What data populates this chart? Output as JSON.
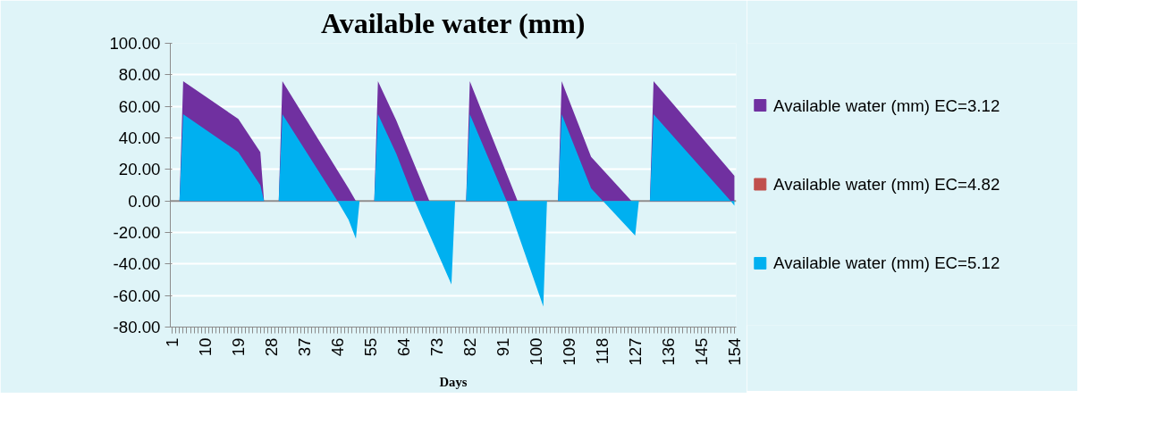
{
  "chart_data": {
    "type": "area",
    "title": "Available water (mm)",
    "xlabel": "Days",
    "xlim": [
      0.5,
      154.5
    ],
    "xticks": [
      1,
      10,
      19,
      28,
      37,
      46,
      55,
      64,
      73,
      82,
      91,
      100,
      109,
      118,
      127,
      136,
      145,
      154
    ],
    "ylim": [
      -80,
      100
    ],
    "yticks": [
      {
        "value": -80,
        "label": "-80.00"
      },
      {
        "value": -60,
        "label": "-60.00"
      },
      {
        "value": -40,
        "label": "-40.00"
      },
      {
        "value": -20,
        "label": "-20.00"
      },
      {
        "value": 0,
        "label": "0.00"
      },
      {
        "value": 20,
        "label": "20.00"
      },
      {
        "value": 40,
        "label": "40.00"
      },
      {
        "value": 60,
        "label": "60.00"
      },
      {
        "value": 80,
        "label": "80.00"
      },
      {
        "value": 100,
        "label": "100.00"
      }
    ],
    "grid": "y",
    "legend": "right",
    "series": [
      {
        "name": "Available water (mm) EC=3.12",
        "color": "#7030a0",
        "x": [
          3,
          4,
          19,
          25,
          26,
          30,
          31,
          49,
          51,
          56,
          57,
          62,
          71,
          81,
          82,
          95,
          106,
          107,
          115,
          126,
          131,
          132,
          154
        ],
        "values": [
          0,
          76,
          52,
          31,
          0,
          0,
          76,
          8,
          0,
          0,
          76,
          51,
          0,
          0,
          76,
          0,
          0,
          76,
          28,
          0,
          0,
          76,
          16
        ]
      },
      {
        "name": "Available water (mm) EC=4.82",
        "color": "#c0504d"
      },
      {
        "name": "Available water (mm) EC=5.12",
        "color": "#00b0f0",
        "x": [
          3,
          4,
          19,
          25,
          26,
          30,
          31,
          46,
          49,
          51,
          52,
          56,
          57,
          62,
          67,
          77,
          78,
          81,
          82,
          92,
          102,
          103,
          106,
          107,
          115,
          127,
          128,
          131,
          132,
          153,
          154
        ],
        "values": [
          0,
          55,
          31,
          10,
          0,
          0,
          55,
          0,
          -12,
          -24,
          0,
          0,
          55,
          30,
          0,
          -53,
          0,
          0,
          55,
          0,
          -67,
          0,
          0,
          55,
          8,
          -22,
          0,
          0,
          55,
          0,
          -3
        ]
      }
    ]
  }
}
